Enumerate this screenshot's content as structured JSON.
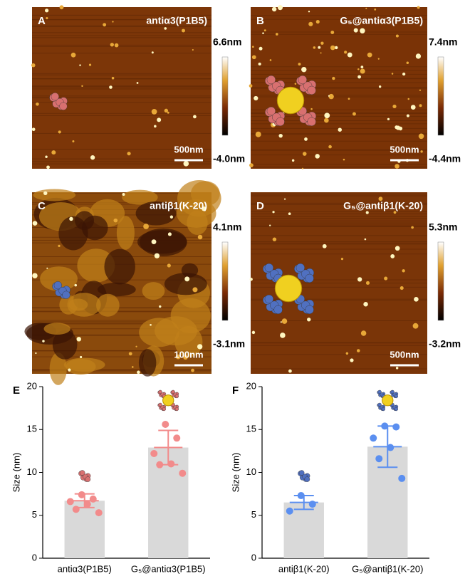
{
  "panels": [
    {
      "label": "A",
      "title": "antiα3(P1B5)",
      "scale_max": "6.6nm",
      "scale_min": "-4.0nm",
      "scale_bar": "500nm"
    },
    {
      "label": "B",
      "title": "G₅@antiα3(P1B5)",
      "scale_max": "7.4nm",
      "scale_min": "-4.4nm",
      "scale_bar": "500nm"
    },
    {
      "label": "C",
      "title": "antiβ1(K-20)",
      "scale_max": "4.1nm",
      "scale_min": "-3.1nm",
      "scale_bar": "100nm"
    },
    {
      "label": "D",
      "title": "G₅@antiβ1(K-20)",
      "scale_max": "5.3nm",
      "scale_min": "-3.2nm",
      "scale_bar": "500nm"
    }
  ],
  "chart_data": [
    {
      "type": "bar",
      "panel_label": "E",
      "y_label": "Size (nm)",
      "categories": [
        "antiα3(P1B5)",
        "G₅@antiα3(P1B5)"
      ],
      "values": [
        6.7,
        12.9
      ],
      "errors": [
        0.8,
        2.0
      ],
      "points": [
        [
          7.4,
          6.9,
          6.6,
          6.3,
          5.7,
          5.3
        ],
        [
          15.6,
          14.0,
          12.2,
          11.0,
          10.9,
          9.9
        ]
      ],
      "color": "#d9d9d9",
      "point_color": "#f28b8b",
      "ylim": [
        0,
        20
      ],
      "yticks": [
        0,
        5,
        10,
        15,
        20
      ]
    },
    {
      "type": "bar",
      "panel_label": "F",
      "y_label": "Size (nm)",
      "categories": [
        "antiβ1(K-20)",
        "G₅@antiβ1(K-20)"
      ],
      "values": [
        6.5,
        13.0
      ],
      "errors": [
        0.8,
        2.4
      ],
      "points": [
        [
          7.3,
          6.3,
          5.5
        ],
        [
          15.4,
          15.3,
          14.0,
          12.9,
          11.6,
          9.3
        ]
      ],
      "color": "#d9d9d9",
      "point_color": "#5b8ff0",
      "ylim": [
        0,
        20
      ],
      "yticks": [
        0,
        5,
        10,
        15,
        20
      ]
    }
  ]
}
